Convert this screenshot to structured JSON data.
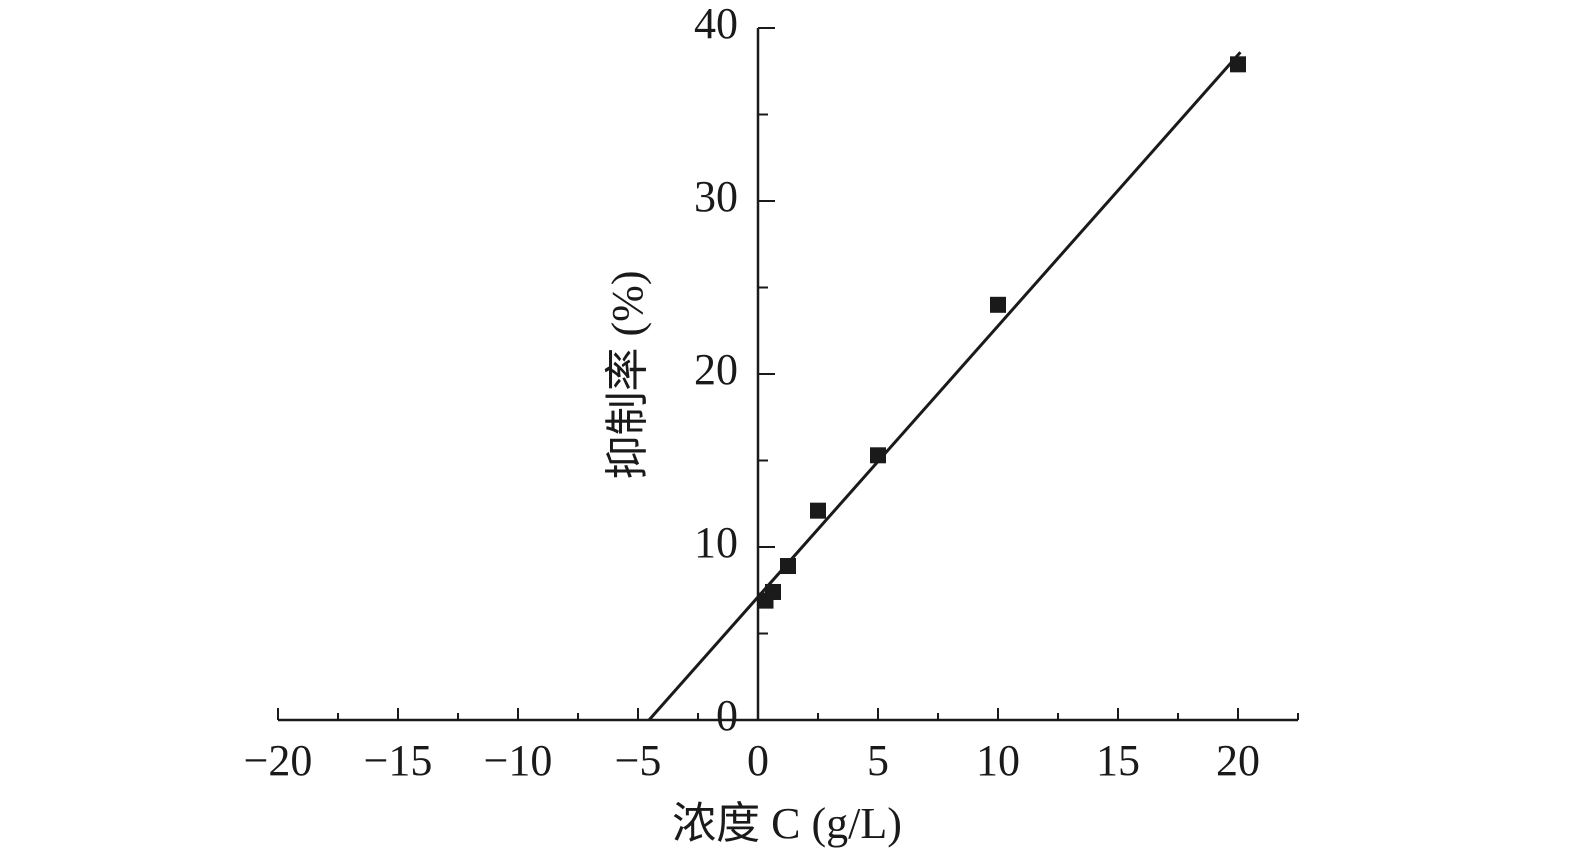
{
  "chart_data": {
    "type": "scatter",
    "xlabel": "浓度 C (g/L)",
    "ylabel": "抑制率 (%)",
    "xlim": [
      -20,
      22.5
    ],
    "ylim": [
      0,
      40
    ],
    "xticks": [
      {
        "value": -20,
        "label": "−20"
      },
      {
        "value": -15,
        "label": "−15"
      },
      {
        "value": -10,
        "label": "−10"
      },
      {
        "value": -5,
        "label": "−5"
      },
      0,
      5,
      10,
      15,
      20
    ],
    "yticks": [
      0,
      10,
      20,
      30,
      40
    ],
    "series": [
      {
        "type": "scatter",
        "color": "#1a1a1a",
        "x": [
          0.3125,
          0.625,
          1.25,
          2.5,
          5,
          10,
          20
        ],
        "values": [
          6.9,
          7.4,
          8.9,
          12.1,
          15.3,
          24.0,
          37.9
        ]
      },
      {
        "type": "line",
        "color": "#1a1a1a",
        "x": [
          -4.54,
          20.1
        ],
        "values": [
          0,
          38.6
        ]
      }
    ]
  }
}
